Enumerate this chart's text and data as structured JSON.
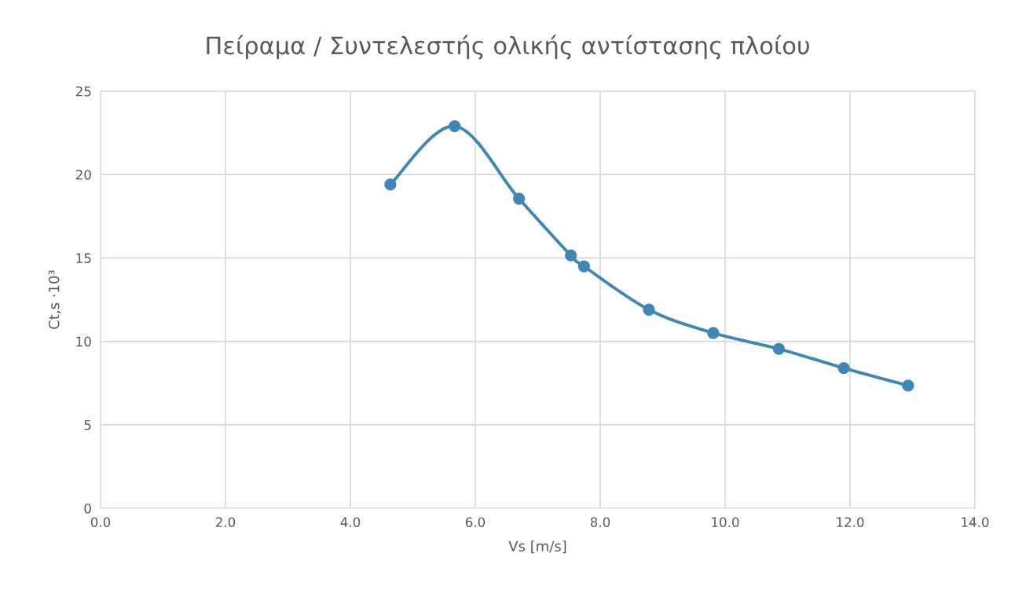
{
  "chart_data": {
    "type": "line",
    "title": "Πείραμα / Συντελεστής ολικής αντίστασης πλοίου",
    "xlabel": "Vs [m/s]",
    "ylabel": "Ct,s ·10³",
    "x": [
      4.64,
      5.67,
      6.7,
      7.53,
      7.74,
      8.78,
      9.81,
      10.86,
      11.9,
      12.93
    ],
    "series": [
      {
        "color": "#3f87b5",
        "values": [
          19.4,
          22.9,
          18.55,
          15.15,
          14.5,
          11.9,
          10.5,
          9.55,
          8.4,
          7.35
        ]
      }
    ],
    "xlim": [
      0,
      14
    ],
    "xticks": [
      {
        "value": 0,
        "label": "0.0"
      },
      {
        "value": 2,
        "label": "2.0"
      },
      {
        "value": 4,
        "label": "4.0"
      },
      {
        "value": 6,
        "label": "6.0"
      },
      {
        "value": 8,
        "label": "8.0"
      },
      {
        "value": 10,
        "label": "10.0"
      },
      {
        "value": 12,
        "label": "12.0"
      },
      {
        "value": 14,
        "label": "14.0"
      }
    ],
    "ylim": [
      0,
      25
    ],
    "yticks": [
      0,
      5,
      10,
      15,
      20,
      25
    ],
    "grid": true,
    "marker": "circle",
    "line_style": "solid"
  }
}
